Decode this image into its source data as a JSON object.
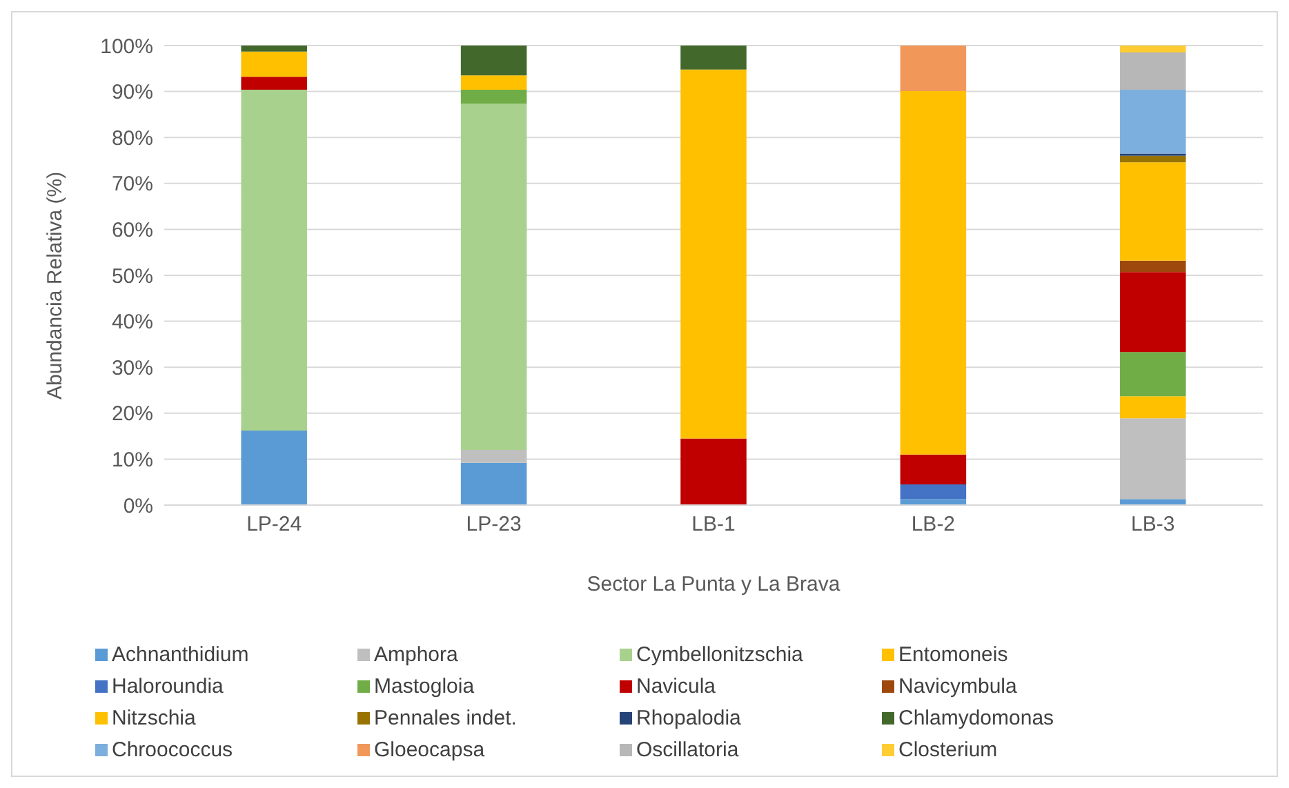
{
  "chart_data": {
    "type": "bar",
    "stacked": true,
    "xlabel": "Sector La Punta y La Brava",
    "ylabel": "Abundancia Relativa (%)",
    "categories": [
      "LP-24",
      "LP-23",
      "LB-1",
      "LB-2",
      "LB-3"
    ],
    "ylim": [
      0,
      100
    ],
    "yticks": [
      {
        "value": 0,
        "label": "0%"
      },
      {
        "value": 10,
        "label": "10%"
      },
      {
        "value": 20,
        "label": "20%"
      },
      {
        "value": 30,
        "label": "30%"
      },
      {
        "value": 40,
        "label": "40%"
      },
      {
        "value": 50,
        "label": "50%"
      },
      {
        "value": 60,
        "label": "60%"
      },
      {
        "value": 70,
        "label": "70%"
      },
      {
        "value": 80,
        "label": "80%"
      },
      {
        "value": 90,
        "label": "90%"
      },
      {
        "value": 100,
        "label": "100%"
      }
    ],
    "grid": "y",
    "legend": "bottom",
    "series": [
      {
        "name": "Achnanthidium",
        "color": "#5b9bd5",
        "values": [
          16.2,
          9.2,
          null,
          1.3,
          1.3
        ]
      },
      {
        "name": "Amphora",
        "color": "#bfbfbf",
        "values": [
          null,
          2.8,
          null,
          null,
          17.6
        ]
      },
      {
        "name": "Cymbellonitzschia",
        "color": "#a9d18e",
        "values": [
          74.2,
          75.3,
          null,
          null,
          null
        ]
      },
      {
        "name": "Entomoneis",
        "color": "#ffc000",
        "values": [
          null,
          null,
          null,
          null,
          4.8
        ]
      },
      {
        "name": "Haloroundia",
        "color": "#4472c4",
        "values": [
          null,
          null,
          null,
          3.2,
          null
        ]
      },
      {
        "name": "Mastogloia",
        "color": "#70ad47",
        "values": [
          null,
          3.1,
          null,
          null,
          9.6
        ]
      },
      {
        "name": "Navicula",
        "color": "#c00000",
        "values": [
          2.8,
          null,
          14.5,
          6.5,
          17.4
        ]
      },
      {
        "name": "Navicymbula",
        "color": "#9e480e",
        "values": [
          null,
          null,
          null,
          null,
          2.5
        ]
      },
      {
        "name": "Nitzschia",
        "color": "#ffc000",
        "values": [
          5.5,
          3.1,
          80.3,
          79.1,
          21.4
        ]
      },
      {
        "name": "Pennales indet.",
        "color": "#997300",
        "values": [
          null,
          null,
          null,
          null,
          1.4
        ]
      },
      {
        "name": "Rhopalodia",
        "color": "#264478",
        "values": [
          null,
          null,
          null,
          null,
          0.5
        ]
      },
      {
        "name": "Chlamydomonas",
        "color": "#43682b",
        "values": [
          1.3,
          6.5,
          5.2,
          null,
          null
        ]
      },
      {
        "name": "Chroococcus",
        "color": "#7cafdd",
        "values": [
          null,
          null,
          null,
          null,
          13.9
        ]
      },
      {
        "name": "Gloeocapsa",
        "color": "#f1975a",
        "values": [
          null,
          null,
          null,
          9.9,
          null
        ]
      },
      {
        "name": "Oscillatoria",
        "color": "#b7b7b7",
        "values": [
          null,
          null,
          null,
          null,
          8.1
        ]
      },
      {
        "name": "Closterium",
        "color": "#ffcd33",
        "values": [
          null,
          null,
          null,
          null,
          1.5
        ]
      }
    ]
  }
}
